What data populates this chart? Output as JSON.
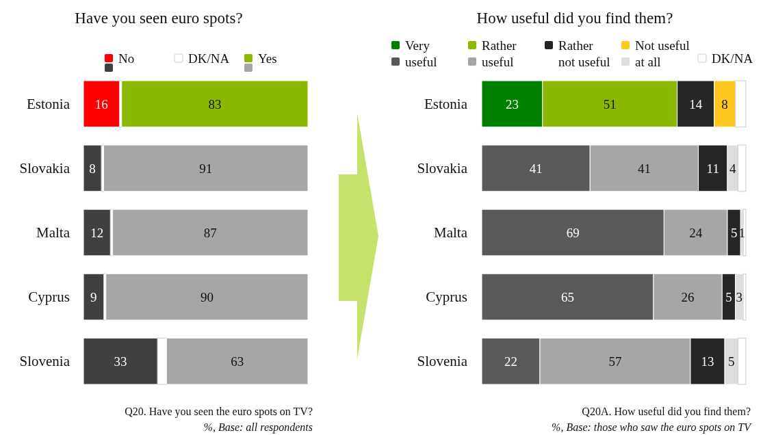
{
  "chart_data": [
    {
      "type": "bar",
      "orientation": "horizontal",
      "stacked": true,
      "title": "Have you seen euro spots?",
      "categories": [
        "Estonia",
        "Slovakia",
        "Malta",
        "Cyprus",
        "Slovenia"
      ],
      "xlim": [
        0,
        100
      ],
      "tick_labels": "y",
      "legend": "top",
      "data_labels": true,
      "series": [
        {
          "name": "No",
          "colors": [
            "#ff0000",
            "#404040",
            "#404040",
            "#404040",
            "#404040"
          ],
          "values": [
            16,
            8,
            12,
            9,
            33
          ]
        },
        {
          "name": "DK/NA",
          "colors": [
            "#ffffff",
            "#ffffff",
            "#ffffff",
            "#ffffff",
            "#ffffff"
          ],
          "values": [
            1,
            1,
            1,
            1,
            4
          ],
          "value_labels": [
            null,
            null,
            null,
            null,
            null
          ]
        },
        {
          "name": "Yes",
          "colors": [
            "#8ab800",
            "#a6a6a6",
            "#a6a6a6",
            "#a6a6a6",
            "#a6a6a6"
          ],
          "values": [
            83,
            91,
            87,
            90,
            63
          ]
        }
      ],
      "annotations": [
        "Q20. Have you seen the euro spots on TV?",
        "%, Base: all respondents"
      ]
    },
    {
      "type": "bar",
      "orientation": "horizontal",
      "stacked": true,
      "title": "How useful did you find them?",
      "categories": [
        "Estonia",
        "Slovakia",
        "Malta",
        "Cyprus",
        "Slovenia"
      ],
      "xlim": [
        0,
        100
      ],
      "tick_labels": "y",
      "legend": "top",
      "data_labels": true,
      "series": [
        {
          "name": "Very useful",
          "colors": [
            "#007f00",
            "#595959",
            "#595959",
            "#595959",
            "#595959"
          ],
          "values": [
            23,
            41,
            69,
            65,
            22
          ]
        },
        {
          "name": "Rather useful",
          "colors": [
            "#8ab800",
            "#a6a6a6",
            "#a6a6a6",
            "#a6a6a6",
            "#a6a6a6"
          ],
          "values": [
            51,
            41,
            24,
            26,
            57
          ]
        },
        {
          "name": "Rather not useful",
          "colors": [
            "#262626",
            "#262626",
            "#262626",
            "#262626",
            "#262626"
          ],
          "values": [
            14,
            11,
            5,
            5,
            13
          ]
        },
        {
          "name": "Not useful at all",
          "colors": [
            "#ffc820",
            "#dddddd",
            "#dddddd",
            "#dddddd",
            "#dddddd"
          ],
          "values": [
            8,
            4,
            1,
            3,
            5
          ]
        },
        {
          "name": "DK/NA",
          "colors": [
            "#ffffff",
            "#ffffff",
            "#ffffff",
            "#ffffff",
            "#ffffff"
          ],
          "values": [
            4,
            3,
            1,
            1,
            3
          ],
          "value_labels": [
            null,
            null,
            null,
            null,
            null
          ]
        }
      ],
      "annotations": [
        "Q20A. How useful did you find them?",
        "%, Base: those who saw the euro spots on TV"
      ]
    }
  ]
}
